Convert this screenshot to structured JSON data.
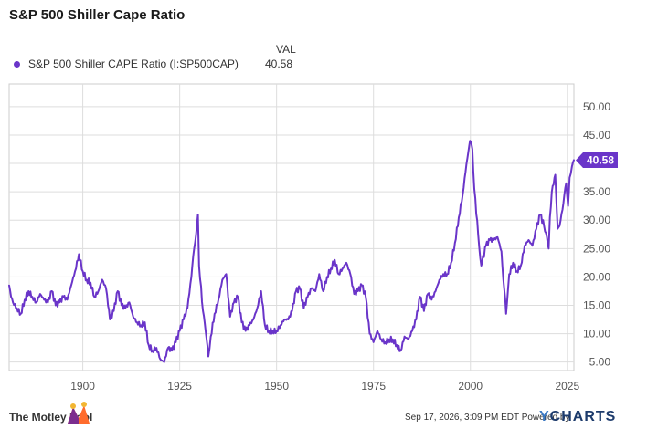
{
  "header": {
    "title": "S&P 500 Shiller Cape Ratio"
  },
  "legend": {
    "column_header": "VAL",
    "series_label": "S&P 500 Shiller CAPE Ratio (I:SP500CAP)",
    "series_value": "40.58"
  },
  "footer": {
    "brand": "The Motley Fool",
    "timestamp_text": "Sep 17, 2026, 3:09 PM EDT",
    "powered_by": "Powered by",
    "ycharts_logo": "YCHARTS"
  },
  "colors": {
    "series": "#6a35c9",
    "grid": "#dddddd",
    "text": "#333333",
    "ycharts": "#1d3b6c"
  },
  "chart_data": {
    "type": "line",
    "title": "S&P 500 Shiller Cape Ratio",
    "xlabel": "",
    "ylabel": "",
    "xlim": [
      1881,
      2026.7
    ],
    "ylim": [
      3.5,
      54
    ],
    "x_ticks": [
      1900,
      1925,
      1950,
      1975,
      2000,
      2025
    ],
    "x_tick_labels": [
      "1900",
      "1925",
      "1950",
      "1975",
      "2000",
      "2025"
    ],
    "y_ticks": [
      5,
      10,
      15,
      20,
      25,
      30,
      35,
      40,
      45,
      50
    ],
    "y_tick_labels": [
      "5.00",
      "10.00",
      "15.00",
      "20.00",
      "25.00",
      "30.00",
      "35.00",
      "40.00",
      "45.00",
      "50.00"
    ],
    "grid": true,
    "legend_position": "top-left",
    "last_value_label": "40.58",
    "series": [
      {
        "name": "S&P 500 Shiller CAPE Ratio (I:SP500CAP)",
        "color": "#6a35c9",
        "x": [
          1881,
          1881.5,
          1882,
          1883,
          1884,
          1885,
          1886,
          1887,
          1888,
          1889,
          1890,
          1891,
          1892,
          1893,
          1894,
          1895,
          1896,
          1897,
          1898,
          1899,
          1900,
          1901,
          1902,
          1903,
          1904,
          1905,
          1906,
          1907,
          1908,
          1909,
          1910,
          1911,
          1912,
          1913,
          1914,
          1915,
          1916,
          1917,
          1918,
          1919,
          1920,
          1921,
          1922,
          1923,
          1924,
          1925,
          1926,
          1927,
          1928,
          1929.7,
          1930,
          1931,
          1932.4,
          1933,
          1934,
          1935,
          1936,
          1937,
          1938,
          1939,
          1940,
          1941,
          1942,
          1943,
          1944,
          1945,
          1946,
          1947,
          1948,
          1949,
          1950,
          1951,
          1952,
          1953,
          1954,
          1955,
          1956,
          1957,
          1958,
          1959,
          1960,
          1961,
          1962,
          1963,
          1964,
          1965,
          1966,
          1967,
          1968,
          1969,
          1970,
          1971,
          1972,
          1973,
          1974,
          1975,
          1976,
          1977,
          1978,
          1979,
          1980,
          1981,
          1982,
          1983,
          1984,
          1985,
          1986,
          1987,
          1988,
          1989,
          1990,
          1991,
          1992,
          1993,
          1994,
          1995,
          1996,
          1997,
          1998,
          1999,
          1999.9,
          2000.5,
          2001,
          2002,
          2002.8,
          2003,
          2004,
          2005,
          2006,
          2007,
          2008,
          2009.2,
          2010,
          2011,
          2012,
          2013,
          2014,
          2015,
          2016,
          2017,
          2018,
          2019,
          2020.2,
          2020.5,
          2021,
          2021.9,
          2022.5,
          2023,
          2024,
          2024.7,
          2025.2,
          2025.6,
          2026.2,
          2026.7
        ],
        "y": [
          18.5,
          16.5,
          15.5,
          14.5,
          13.5,
          16.0,
          17.5,
          16.5,
          15.5,
          17.0,
          16.0,
          15.5,
          17.5,
          15.0,
          15.5,
          16.5,
          16.0,
          18.5,
          21.0,
          24.0,
          21.0,
          19.5,
          19.0,
          16.5,
          17.5,
          19.5,
          18.0,
          12.5,
          14.0,
          17.5,
          15.0,
          14.5,
          15.5,
          13.0,
          12.0,
          11.5,
          12.0,
          8.0,
          7.0,
          7.5,
          5.5,
          5.0,
          7.5,
          7.0,
          8.5,
          10.5,
          12.5,
          14.5,
          20.0,
          31.0,
          22.0,
          14.0,
          6.0,
          9.5,
          13.5,
          16.0,
          19.5,
          20.5,
          13.0,
          15.5,
          16.5,
          12.0,
          10.5,
          11.5,
          12.5,
          14.5,
          17.5,
          11.5,
          10.5,
          10.5,
          10.5,
          11.5,
          12.5,
          12.5,
          14.0,
          17.5,
          18.0,
          14.5,
          16.5,
          18.0,
          17.5,
          20.5,
          17.5,
          20.0,
          21.5,
          23.0,
          20.5,
          21.5,
          22.5,
          20.5,
          17.0,
          17.5,
          18.5,
          16.5,
          10.0,
          8.5,
          10.5,
          9.0,
          8.5,
          9.0,
          9.0,
          8.0,
          7.0,
          9.5,
          9.0,
          10.5,
          12.5,
          16.5,
          14.0,
          17.0,
          16.0,
          17.5,
          19.5,
          20.5,
          20.5,
          22.5,
          26.0,
          30.5,
          34.5,
          40.0,
          44.0,
          42.5,
          35.5,
          27.5,
          22.0,
          22.5,
          25.5,
          26.5,
          26.5,
          27.0,
          24.5,
          13.5,
          20.5,
          22.5,
          21.0,
          22.0,
          25.5,
          26.5,
          25.5,
          28.5,
          31.0,
          29.0,
          25.0,
          30.5,
          35.0,
          38.0,
          28.5,
          29.0,
          33.0,
          36.5,
          32.5,
          37.5,
          39.5,
          40.58
        ]
      }
    ]
  }
}
